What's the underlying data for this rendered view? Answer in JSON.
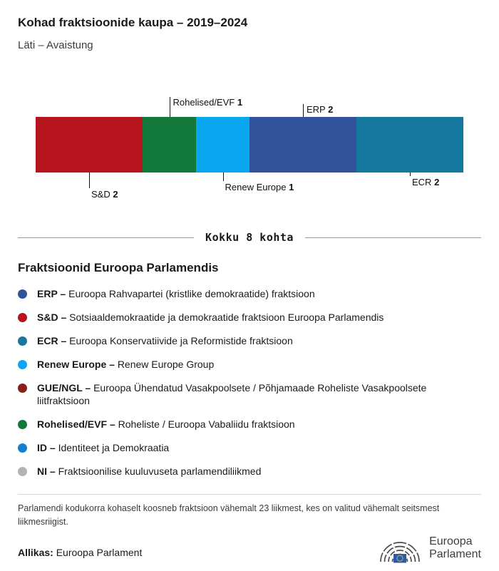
{
  "header": {
    "title": "Kohad fraktsioonide kaupa – 2019–2024",
    "subtitle": "Läti – Avaistung"
  },
  "chart_data": {
    "type": "bar",
    "title": "Kohad fraktsioonide kaupa – 2019–2024",
    "total_seats": 8,
    "total_label": "Kokku 8 kohta",
    "categories": [
      "S&D",
      "Rohelised/EVF",
      "Renew Europe",
      "ERP",
      "ECR"
    ],
    "values": [
      2,
      1,
      1,
      2,
      2
    ],
    "segments": [
      {
        "name": "S&D",
        "seats": 2,
        "color": "#b6151d",
        "label_position": "below",
        "label_tier": 2
      },
      {
        "name": "Rohelised/EVF",
        "seats": 1,
        "color": "#12793a",
        "label_position": "above",
        "label_tier": 2
      },
      {
        "name": "Renew Europe",
        "seats": 1,
        "color": "#0aa6f0",
        "label_position": "below",
        "label_tier": 1
      },
      {
        "name": "ERP",
        "seats": 2,
        "color": "#33529c",
        "label_position": "above",
        "label_tier": 1
      },
      {
        "name": "ECR",
        "seats": 2,
        "color": "#15789f",
        "label_position": "below",
        "label_tier": 0
      }
    ]
  },
  "legend": {
    "heading": "Fraktsioonid Euroopa Parlamendis",
    "items": [
      {
        "abbr": "ERP –",
        "desc": "Euroopa Rahvapartei (kristlike demokraatide) fraktsioon",
        "color": "#33529c"
      },
      {
        "abbr": "S&D –",
        "desc": "Sotsiaaldemokraatide ja demokraatide fraktsioon Euroopa Parlamendis",
        "color": "#b6151d"
      },
      {
        "abbr": "ECR –",
        "desc": "Euroopa Konservatiivide ja Reformistide fraktsioon",
        "color": "#15789f"
      },
      {
        "abbr": "Renew Europe –",
        "desc": "Renew Europe Group",
        "color": "#0aa6f0"
      },
      {
        "abbr": "GUE/NGL –",
        "desc": "Euroopa Ühendatud Vasakpoolsete / Põhjamaade Roheliste Vasakpoolsete liitfraktsioon",
        "color": "#8b1d1d"
      },
      {
        "abbr": "Rohelised/EVF –",
        "desc": "Roheliste / Euroopa Vabaliidu fraktsioon",
        "color": "#12793a"
      },
      {
        "abbr": "ID –",
        "desc": "Identiteet ja Demokraatia",
        "color": "#1580d0"
      },
      {
        "abbr": "NI –",
        "desc": "Fraktsioonilise kuuluvuseta parlamendiliikmed",
        "color": "#b3b3b3"
      }
    ]
  },
  "footnote": "Parlamendi kodukorra kohaselt koosneb fraktsioon vähemalt 23 liikmest, kes on valitud vähemalt seitsmest liikmesriigist.",
  "source": {
    "label": "Allikas:",
    "text": "Euroopa Parlament"
  },
  "logo": {
    "line1": "Euroopa",
    "line2": "Parlament"
  }
}
